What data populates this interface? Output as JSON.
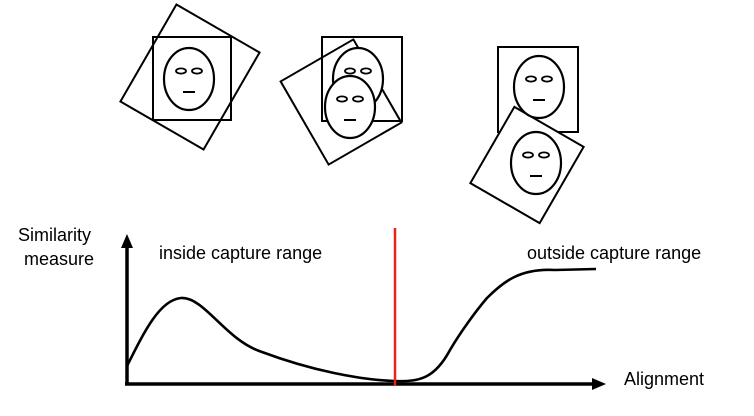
{
  "labels": {
    "y_axis_line1": "Similarity",
    "y_axis_line2": "measure",
    "x_axis": "Alignment",
    "inside_range": "inside capture range",
    "outside_range": "outside capture range"
  },
  "colors": {
    "stroke": "#000000",
    "threshold": "#e8231f",
    "background": "#ffffff"
  },
  "icons": {
    "face": "face-icon",
    "frame": "square-frame-icon"
  }
}
